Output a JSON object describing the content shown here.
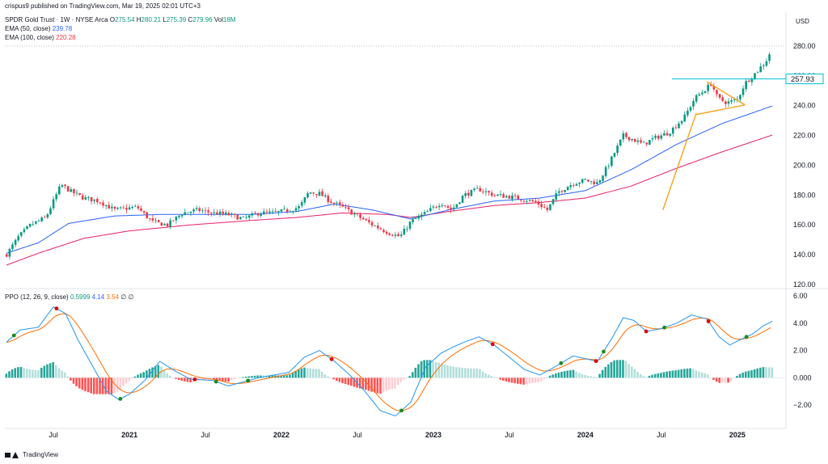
{
  "header": {
    "publisher": "crispus9 published on TradingView.com, Mar 19, 2025 02:01 UTC+3",
    "symbol": "SPDR Gold Trust · 1W · NYSE Arca",
    "o_label": "O",
    "o_value": "275.54",
    "h_label": "H",
    "h_value": "280.21",
    "l_label": "L",
    "l_value": "275.39",
    "c_label": "C",
    "c_value": "279.96",
    "vol_label": "Vol",
    "vol_value": "18M",
    "ema50_label": "EMA (50, close)",
    "ema50_value": "239.78",
    "ema100_label": "EMA (100, close)",
    "ema100_value": "220.28",
    "currency": "USD"
  },
  "ppo_header": {
    "label": "PPO (12, 26, 9, close)",
    "v1": "0.5999",
    "v2": "4.14",
    "v3": "3.54",
    "suffix": "∅ ∅"
  },
  "footer": {
    "brand": "TradingView"
  },
  "colors": {
    "up": "#089981",
    "down": "#f23645",
    "ema50": "#2962ff",
    "ema100": "#e91e63",
    "ppo": "#2196f3",
    "signal": "#ff6d00",
    "pattern": "#f7a21b",
    "level": "#00bcd4",
    "hist_up_strong": "#26a69a",
    "hist_up_weak": "#b2dfdb",
    "hist_down_strong": "#ff5252",
    "hist_down_weak": "#ffcdd2"
  },
  "chart_data": {
    "type": "candlestick",
    "price_axis": {
      "ticks": [
        "280.00",
        "260.00",
        "240.00",
        "220.00",
        "200.00",
        "180.00",
        "160.00",
        "140.00",
        "120.00"
      ],
      "range": [
        120,
        287
      ]
    },
    "price_level": {
      "value": 257.93,
      "label": "257.93"
    },
    "ppo_axis": {
      "ticks": [
        "6.00",
        "4.00",
        "2.00",
        "0.000",
        "−2.00"
      ],
      "range": [
        -3,
        6
      ]
    },
    "x_ticks": [
      "Jul",
      "2021",
      "Jul",
      "2022",
      "Jul",
      "2023",
      "Jul",
      "2024",
      "Jul",
      "2025"
    ],
    "x_tick_times": [
      2020.5,
      2021.0,
      2021.5,
      2022.0,
      2022.5,
      2023.0,
      2023.5,
      2024.0,
      2024.5,
      2025.0
    ],
    "x_range": [
      2020.18,
      2025.32
    ],
    "price_keypoints": [
      [
        2020.19,
        140
      ],
      [
        2020.27,
        152
      ],
      [
        2020.35,
        160
      ],
      [
        2020.45,
        165
      ],
      [
        2020.55,
        187
      ],
      [
        2020.62,
        182
      ],
      [
        2020.7,
        178
      ],
      [
        2020.8,
        176
      ],
      [
        2020.9,
        170
      ],
      [
        2021.05,
        172
      ],
      [
        2021.15,
        162
      ],
      [
        2021.25,
        160
      ],
      [
        2021.35,
        168
      ],
      [
        2021.45,
        170
      ],
      [
        2021.55,
        168
      ],
      [
        2021.65,
        167
      ],
      [
        2021.75,
        164
      ],
      [
        2021.85,
        168
      ],
      [
        2021.95,
        168
      ],
      [
        2022.05,
        170
      ],
      [
        2022.12,
        172
      ],
      [
        2022.18,
        182
      ],
      [
        2022.25,
        181
      ],
      [
        2022.32,
        176
      ],
      [
        2022.4,
        172
      ],
      [
        2022.5,
        166
      ],
      [
        2022.6,
        160
      ],
      [
        2022.7,
        155
      ],
      [
        2022.78,
        152
      ],
      [
        2022.85,
        162
      ],
      [
        2022.95,
        168
      ],
      [
        2023.05,
        175
      ],
      [
        2023.12,
        170
      ],
      [
        2023.2,
        180
      ],
      [
        2023.3,
        184
      ],
      [
        2023.4,
        180
      ],
      [
        2023.5,
        179
      ],
      [
        2023.6,
        177
      ],
      [
        2023.68,
        175
      ],
      [
        2023.75,
        170
      ],
      [
        2023.82,
        182
      ],
      [
        2023.92,
        188
      ],
      [
        2024.0,
        190
      ],
      [
        2024.08,
        188
      ],
      [
        2024.15,
        200
      ],
      [
        2024.2,
        210
      ],
      [
        2024.25,
        220
      ],
      [
        2024.3,
        218
      ],
      [
        2024.38,
        214
      ],
      [
        2024.45,
        218
      ],
      [
        2024.55,
        222
      ],
      [
        2024.65,
        232
      ],
      [
        2024.72,
        245
      ],
      [
        2024.78,
        250
      ],
      [
        2024.83,
        255
      ],
      [
        2024.87,
        245
      ],
      [
        2024.93,
        242
      ],
      [
        2025.0,
        244
      ],
      [
        2025.05,
        255
      ],
      [
        2025.12,
        262
      ],
      [
        2025.19,
        270
      ],
      [
        2025.23,
        279
      ]
    ],
    "ema50_keypoints": [
      [
        2020.19,
        141
      ],
      [
        2020.4,
        148
      ],
      [
        2020.6,
        161
      ],
      [
        2020.9,
        166
      ],
      [
        2021.2,
        167
      ],
      [
        2021.5,
        167
      ],
      [
        2021.8,
        167
      ],
      [
        2022.1,
        169
      ],
      [
        2022.35,
        174
      ],
      [
        2022.6,
        170
      ],
      [
        2022.85,
        164
      ],
      [
        2023.1,
        170
      ],
      [
        2023.4,
        176
      ],
      [
        2023.7,
        178
      ],
      [
        2024.0,
        183
      ],
      [
        2024.3,
        197
      ],
      [
        2024.6,
        214
      ],
      [
        2024.9,
        228
      ],
      [
        2025.23,
        239.8
      ]
    ],
    "ema100_keypoints": [
      [
        2020.19,
        133
      ],
      [
        2020.4,
        141
      ],
      [
        2020.7,
        151
      ],
      [
        2021.0,
        156
      ],
      [
        2021.4,
        160
      ],
      [
        2021.8,
        163
      ],
      [
        2022.1,
        165
      ],
      [
        2022.4,
        168
      ],
      [
        2022.7,
        167
      ],
      [
        2022.85,
        165
      ],
      [
        2023.1,
        169
      ],
      [
        2023.4,
        173
      ],
      [
        2023.7,
        175
      ],
      [
        2024.0,
        178
      ],
      [
        2024.3,
        186
      ],
      [
        2024.6,
        198
      ],
      [
        2024.9,
        209
      ],
      [
        2025.23,
        220.3
      ]
    ],
    "ppo_keypoints": [
      [
        2020.19,
        2.6
      ],
      [
        2020.28,
        3.5
      ],
      [
        2020.4,
        3.7
      ],
      [
        2020.5,
        5.2
      ],
      [
        2020.58,
        4.7
      ],
      [
        2020.66,
        2.8
      ],
      [
        2020.75,
        1.0
      ],
      [
        2020.85,
        -1.0
      ],
      [
        2020.93,
        -1.6
      ],
      [
        2021.0,
        -1.2
      ],
      [
        2021.1,
        -0.2
      ],
      [
        2021.2,
        1.2
      ],
      [
        2021.3,
        0.5
      ],
      [
        2021.4,
        -0.1
      ],
      [
        2021.55,
        -0.2
      ],
      [
        2021.65,
        -0.6
      ],
      [
        2021.75,
        -0.3
      ],
      [
        2021.85,
        0.0
      ],
      [
        2021.95,
        0.2
      ],
      [
        2022.05,
        0.4
      ],
      [
        2022.15,
        1.5
      ],
      [
        2022.25,
        2.0
      ],
      [
        2022.35,
        1.2
      ],
      [
        2022.45,
        0.2
      ],
      [
        2022.55,
        -1.0
      ],
      [
        2022.65,
        -2.4
      ],
      [
        2022.75,
        -2.8
      ],
      [
        2022.85,
        -1.8
      ],
      [
        2022.95,
        0.8
      ],
      [
        2023.05,
        1.8
      ],
      [
        2023.12,
        2.2
      ],
      [
        2023.2,
        2.6
      ],
      [
        2023.3,
        3.0
      ],
      [
        2023.4,
        2.4
      ],
      [
        2023.5,
        1.5
      ],
      [
        2023.6,
        0.6
      ],
      [
        2023.7,
        0.2
      ],
      [
        2023.8,
        0.8
      ],
      [
        2023.92,
        1.6
      ],
      [
        2024.0,
        1.4
      ],
      [
        2024.08,
        1.2
      ],
      [
        2024.18,
        3.0
      ],
      [
        2024.25,
        4.4
      ],
      [
        2024.32,
        4.2
      ],
      [
        2024.4,
        3.4
      ],
      [
        2024.5,
        3.6
      ],
      [
        2024.6,
        4.0
      ],
      [
        2024.7,
        4.6
      ],
      [
        2024.8,
        4.3
      ],
      [
        2024.88,
        3.0
      ],
      [
        2024.95,
        2.4
      ],
      [
        2025.02,
        2.8
      ],
      [
        2025.1,
        3.2
      ],
      [
        2025.17,
        3.8
      ],
      [
        2025.23,
        4.14
      ]
    ],
    "cross_dots": [
      {
        "t": 2020.24,
        "c": "green"
      },
      {
        "t": 2020.52,
        "c": "red"
      },
      {
        "t": 2020.94,
        "c": "green"
      },
      {
        "t": 2021.43,
        "c": "red"
      },
      {
        "t": 2021.57,
        "c": "green"
      },
      {
        "t": 2021.78,
        "c": "green"
      },
      {
        "t": 2022.33,
        "c": "red"
      },
      {
        "t": 2022.79,
        "c": "green"
      },
      {
        "t": 2023.39,
        "c": "red"
      },
      {
        "t": 2023.84,
        "c": "green"
      },
      {
        "t": 2024.07,
        "c": "red"
      },
      {
        "t": 2024.12,
        "c": "green"
      },
      {
        "t": 2024.4,
        "c": "red"
      },
      {
        "t": 2024.52,
        "c": "green"
      },
      {
        "t": 2024.81,
        "c": "red"
      },
      {
        "t": 2025.06,
        "c": "green"
      }
    ],
    "pattern_lines": [
      [
        [
          2024.51,
          170
        ],
        [
          2024.73,
          235
        ]
      ],
      [
        [
          2024.73,
          234
        ],
        [
          2025.05,
          240.5
        ]
      ],
      [
        [
          2024.8,
          256
        ],
        [
          2025.05,
          240.5
        ]
      ]
    ]
  }
}
